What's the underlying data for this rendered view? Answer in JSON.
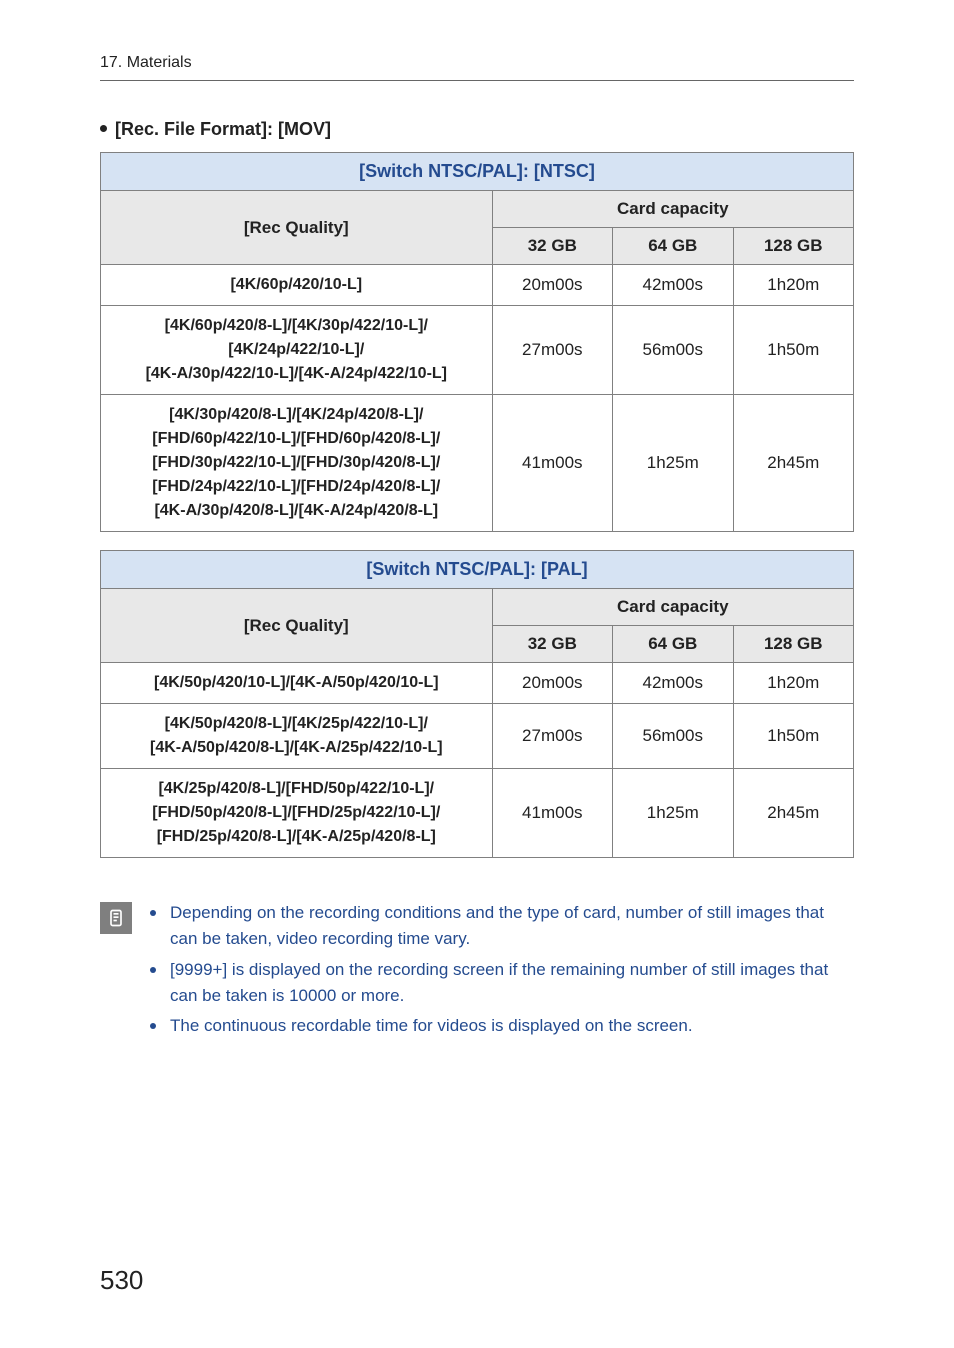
{
  "chapter": "17. Materials",
  "heading_label": "[Rec. File Format]: [MOV]",
  "table_ntsc": {
    "title": "[Switch NTSC/PAL]: [NTSC]",
    "rec_quality_label": "[Rec Quality]",
    "card_capacity_label": "Card capacity",
    "columns": {
      "c32": "32 GB",
      "c64": "64 GB",
      "c128": "128 GB"
    },
    "rows": [
      {
        "quality": "[4K/60p/420/10-L]",
        "v32": "20m00s",
        "v64": "42m00s",
        "v128": "1h20m"
      },
      {
        "quality": "[4K/60p/420/8-L]/[4K/30p/422/10-L]/\n[4K/24p/422/10-L]/\n[4K-A/30p/422/10-L]/[4K-A/24p/422/10-L]",
        "v32": "27m00s",
        "v64": "56m00s",
        "v128": "1h50m"
      },
      {
        "quality": "[4K/30p/420/8-L]/[4K/24p/420/8-L]/\n[FHD/60p/422/10-L]/[FHD/60p/420/8-L]/\n[FHD/30p/422/10-L]/[FHD/30p/420/8-L]/\n[FHD/24p/422/10-L]/[FHD/24p/420/8-L]/\n[4K-A/30p/420/8-L]/[4K-A/24p/420/8-L]",
        "v32": "41m00s",
        "v64": "1h25m",
        "v128": "2h45m"
      }
    ]
  },
  "table_pal": {
    "title": "[Switch NTSC/PAL]: [PAL]",
    "rec_quality_label": "[Rec Quality]",
    "card_capacity_label": "Card capacity",
    "columns": {
      "c32": "32 GB",
      "c64": "64 GB",
      "c128": "128 GB"
    },
    "rows": [
      {
        "quality": "[4K/50p/420/10-L]/[4K-A/50p/420/10-L]",
        "v32": "20m00s",
        "v64": "42m00s",
        "v128": "1h20m"
      },
      {
        "quality": "[4K/50p/420/8-L]/[4K/25p/422/10-L]/\n[4K-A/50p/420/8-L]/[4K-A/25p/422/10-L]",
        "v32": "27m00s",
        "v64": "56m00s",
        "v128": "1h50m"
      },
      {
        "quality": "[4K/25p/420/8-L]/[FHD/50p/422/10-L]/\n[FHD/50p/420/8-L]/[FHD/25p/422/10-L]/\n[FHD/25p/420/8-L]/[4K-A/25p/420/8-L]",
        "v32": "41m00s",
        "v64": "1h25m",
        "v128": "2h45m"
      }
    ]
  },
  "notes": [
    "Depending on the recording conditions and the type of card, number of still images that can be taken, video recording time vary.",
    "[9999+] is displayed on the recording screen if the remaining number of still images that can be taken is 10000 or more.",
    "The continuous recordable time for videos is displayed on the screen."
  ],
  "page_number": "530",
  "colors": {
    "header_blue_bg": "#d6e3f3",
    "header_blue_text": "#244b8f",
    "sub_header_bg": "#e8e8e8",
    "border": "#808080",
    "note_icon_bg": "#7f7f7f"
  }
}
